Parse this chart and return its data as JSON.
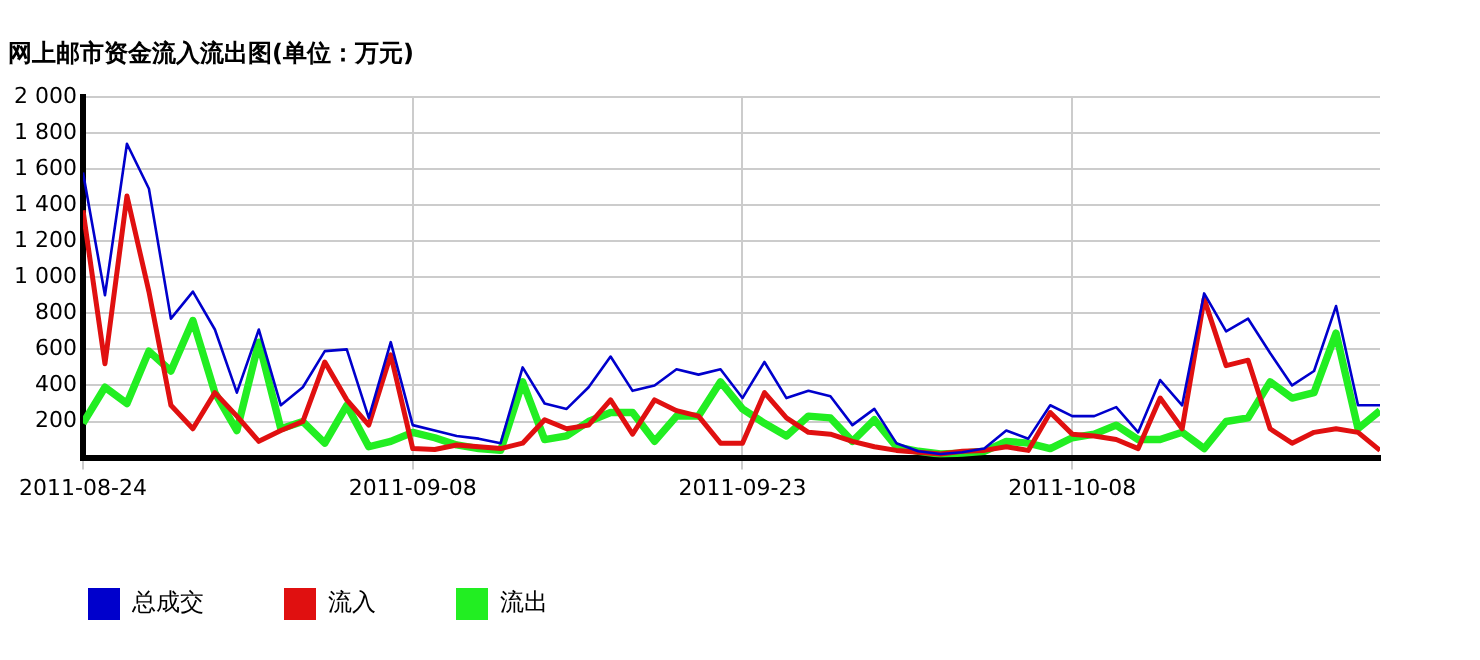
{
  "chart_data": {
    "type": "line",
    "title": "网上邮市资金流入流出图(单位：万元)",
    "x": [
      "2011-08-24",
      "2011-08-25",
      "2011-08-26",
      "2011-08-27",
      "2011-08-28",
      "2011-08-29",
      "2011-08-30",
      "2011-08-31",
      "2011-09-01",
      "2011-09-02",
      "2011-09-03",
      "2011-09-04",
      "2011-09-05",
      "2011-09-06",
      "2011-09-07",
      "2011-09-08",
      "2011-09-09",
      "2011-09-10",
      "2011-09-11",
      "2011-09-12",
      "2011-09-13",
      "2011-09-14",
      "2011-09-15",
      "2011-09-16",
      "2011-09-17",
      "2011-09-18",
      "2011-09-19",
      "2011-09-20",
      "2011-09-21",
      "2011-09-22",
      "2011-09-23",
      "2011-09-24",
      "2011-09-25",
      "2011-09-26",
      "2011-09-27",
      "2011-09-28",
      "2011-09-29",
      "2011-09-30",
      "2011-10-01",
      "2011-10-02",
      "2011-10-03",
      "2011-10-04",
      "2011-10-05",
      "2011-10-06",
      "2011-10-07",
      "2011-10-08",
      "2011-10-09",
      "2011-10-10",
      "2011-10-11",
      "2011-10-12",
      "2011-10-13",
      "2011-10-14",
      "2011-10-15",
      "2011-10-16",
      "2011-10-17",
      "2011-10-18",
      "2011-10-19",
      "2011-10-20",
      "2011-10-21",
      "2011-10-22"
    ],
    "series": [
      {
        "name": "总成交",
        "color": "#0000cc",
        "values": [
          1580,
          900,
          1740,
          1490,
          770,
          920,
          710,
          360,
          710,
          290,
          390,
          590,
          600,
          220,
          640,
          180,
          150,
          120,
          105,
          80,
          500,
          300,
          270,
          390,
          560,
          370,
          400,
          490,
          460,
          490,
          330,
          530,
          330,
          370,
          340,
          180,
          270,
          80,
          35,
          20,
          30,
          50,
          150,
          105,
          290,
          230,
          230,
          280,
          140,
          430,
          290,
          910,
          700,
          770,
          580,
          400,
          480,
          840,
          290,
          290
        ]
      },
      {
        "name": "流入",
        "color": "#e01010",
        "values": [
          1370,
          520,
          1450,
          920,
          290,
          160,
          360,
          230,
          90,
          150,
          200,
          530,
          320,
          180,
          570,
          50,
          45,
          70,
          60,
          50,
          80,
          210,
          160,
          180,
          320,
          130,
          320,
          260,
          230,
          80,
          80,
          360,
          220,
          140,
          130,
          90,
          60,
          40,
          30,
          20,
          35,
          40,
          60,
          40,
          250,
          130,
          120,
          100,
          50,
          330,
          160,
          880,
          510,
          540,
          160,
          80,
          140,
          160,
          140,
          40
        ]
      },
      {
        "name": "流出",
        "color": "#22ee22",
        "values": [
          190,
          390,
          300,
          590,
          480,
          760,
          360,
          150,
          640,
          160,
          200,
          80,
          290,
          60,
          90,
          140,
          110,
          70,
          50,
          40,
          420,
          100,
          120,
          200,
          250,
          250,
          90,
          230,
          230,
          420,
          270,
          190,
          120,
          230,
          220,
          90,
          210,
          60,
          35,
          20,
          25,
          35,
          90,
          80,
          50,
          110,
          130,
          180,
          100,
          100,
          140,
          50,
          200,
          220,
          420,
          330,
          360,
          690,
          160,
          260
        ]
      }
    ],
    "xlim": [
      "2011-08-24",
      "2011-10-22"
    ],
    "xticks": [
      "2011-08-24",
      "2011-09-08",
      "2011-09-23",
      "2011-10-08"
    ],
    "ylim": [
      0,
      2000
    ],
    "yticks": [
      {
        "value": 200,
        "label": "200"
      },
      {
        "value": 400,
        "label": "400"
      },
      {
        "value": 600,
        "label": "600"
      },
      {
        "value": 800,
        "label": "800"
      },
      {
        "value": 1000,
        "label": "1 000"
      },
      {
        "value": 1200,
        "label": "1 200"
      },
      {
        "value": 1400,
        "label": "1 400"
      },
      {
        "value": 1600,
        "label": "1 600"
      },
      {
        "value": 1800,
        "label": "1 800"
      },
      {
        "value": 2000,
        "label": "2 000"
      }
    ],
    "grid": true,
    "legend": "bottom",
    "marker": "none",
    "line_style": "solid"
  }
}
